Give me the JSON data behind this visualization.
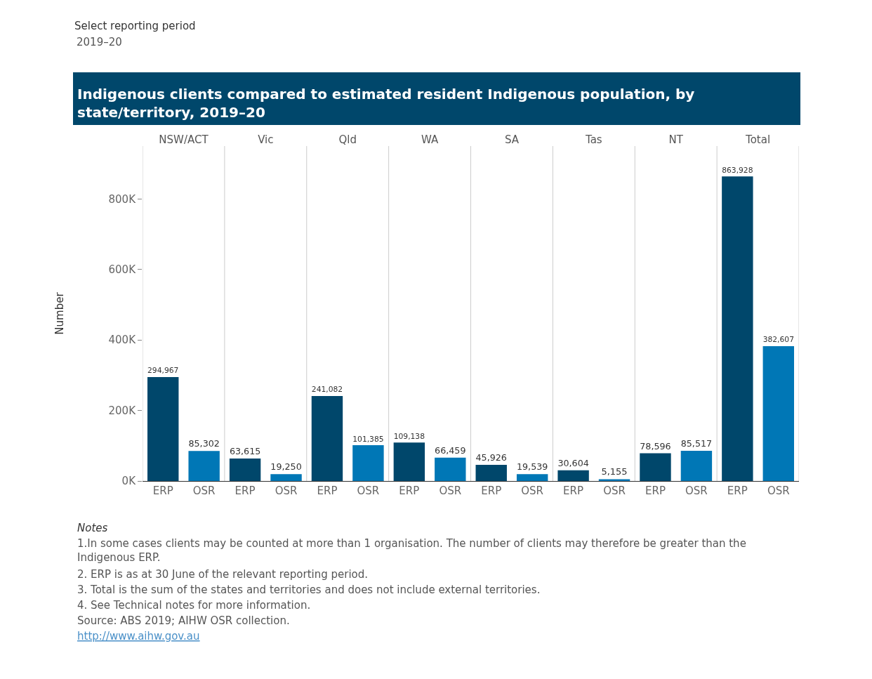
{
  "chart_data": {
    "type": "bar",
    "title": "Indigenous clients compared to estimated resident Indigenous population, by state/territory, 2019–20",
    "ylabel": "Number",
    "categories": [
      "NSW/ACT",
      "Vic",
      "Qld",
      "WA",
      "SA",
      "Tas",
      "NT",
      "Total"
    ],
    "series": [
      {
        "name": "ERP",
        "color": "#00476b",
        "values": [
          294967,
          63615,
          241082,
          109138,
          45926,
          30604,
          78596,
          863928
        ],
        "value_labels": [
          "294,967",
          "63,615",
          "241,082",
          "109,138",
          "45,926",
          "30,604",
          "78,596",
          "863,928"
        ]
      },
      {
        "name": "OSR",
        "color": "#0077b6",
        "values": [
          85302,
          19250,
          101385,
          66459,
          19539,
          5155,
          85517,
          382607
        ],
        "value_labels": [
          "85,302",
          "19,250",
          "101,385",
          "66,459",
          "19,539",
          "5,155",
          "85,517",
          "382,607"
        ]
      }
    ],
    "ylim": [
      0,
      950000
    ],
    "yticks": [
      {
        "value": 0,
        "label": "0K"
      },
      {
        "value": 200000,
        "label": "200K"
      },
      {
        "value": 400000,
        "label": "400K"
      },
      {
        "value": 600000,
        "label": "600K"
      },
      {
        "value": 800000,
        "label": "800K"
      }
    ],
    "grid": false,
    "legend": false,
    "annotations": [
      "Select reporting period",
      "2019–20",
      "Notes",
      "1.In some cases clients may be counted at more than 1 organisation. The number of clients may therefore be greater than the Indigenous ERP.",
      "2. ERP is as at 30 June of the relevant reporting period.",
      "3. Total is the sum of the states and territories and does not include external territories.",
      "4. See Technical notes for more information.",
      "Source: ABS 2019; AIHW OSR collection.",
      "http://www.aihw.gov.au"
    ]
  }
}
